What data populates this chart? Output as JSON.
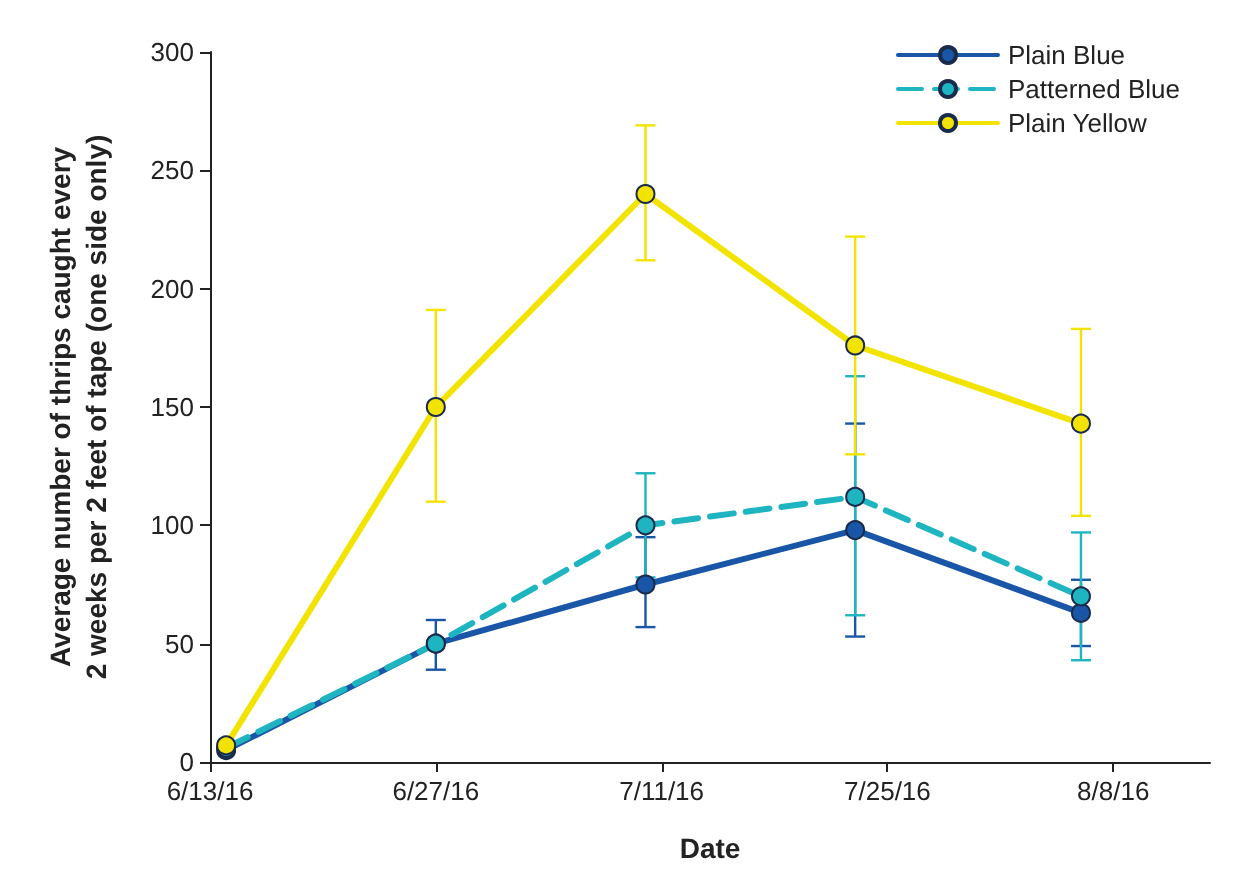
{
  "chart_data": {
    "type": "line",
    "xlabel": "Date",
    "ylabel": "Average number of thrips caught every\n2 weeks per 2 feet of tape (one side only)",
    "x": [
      "2016-06-14",
      "2016-06-27",
      "2016-07-10",
      "2016-07-23",
      "2016-08-06"
    ],
    "series": [
      {
        "name": "Plain Blue",
        "color": "#1a56a8",
        "values": [
          5,
          50,
          75,
          98,
          63
        ],
        "errors": [
          null,
          [
            39,
            60
          ],
          [
            57,
            95
          ],
          [
            53,
            143
          ],
          [
            49,
            77
          ]
        ],
        "line_style": "solid"
      },
      {
        "name": "Patterned Blue",
        "color": "#1fb5c0",
        "values": [
          6,
          50,
          100,
          112,
          70
        ],
        "errors": [
          null,
          null,
          [
            78,
            122
          ],
          [
            62,
            163
          ],
          [
            43,
            97
          ]
        ],
        "line_style": "dashed"
      },
      {
        "name": "Plain Yellow",
        "color": "#f2e400",
        "values": [
          7,
          150,
          240,
          176,
          143
        ],
        "errors": [
          null,
          [
            110,
            191
          ],
          [
            212,
            269
          ],
          [
            130,
            222
          ],
          [
            104,
            183
          ]
        ],
        "line_style": "solid"
      }
    ],
    "xlim": [
      "2016-06-13",
      "2016-08-14"
    ],
    "xticks": [
      {
        "value": "2016-06-13",
        "label": "6/13/16"
      },
      {
        "value": "2016-06-27",
        "label": "6/27/16"
      },
      {
        "value": "2016-07-11",
        "label": "7/11/16"
      },
      {
        "value": "2016-07-25",
        "label": "7/25/16"
      },
      {
        "value": "2016-08-08",
        "label": "8/8/16"
      }
    ],
    "ylim": [
      0,
      300
    ],
    "yticks": [
      0,
      50,
      100,
      150,
      200,
      250,
      300
    ],
    "grid": false,
    "legend": "top right",
    "marker": "circle"
  }
}
